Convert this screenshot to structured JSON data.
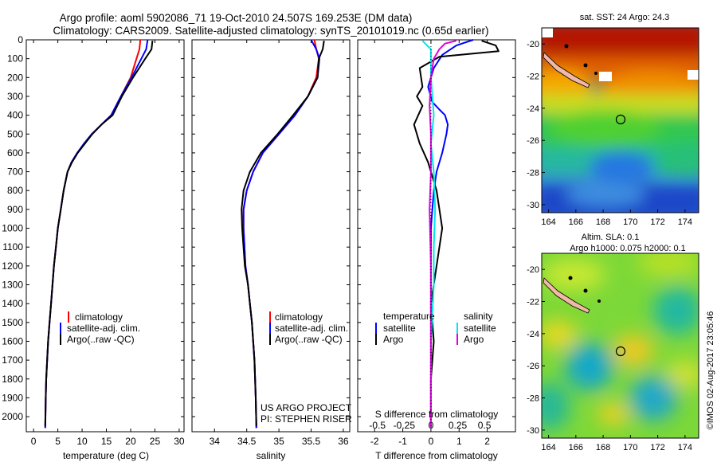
{
  "header": {
    "title_line1": "Argo profile: aoml 5902086_71 19-Oct-2010 24.507S 169.253E (DM data)",
    "title_line2": "Climatology: CARS2009. Satellite-adjusted climatology: synTS_20101019.nc (0.65d earlier)"
  },
  "colors": {
    "climatology": "#ff0000",
    "satellite": "#0000ff",
    "argo": "#000000",
    "sal_satellite": "#00e5ee",
    "sal_argo": "#e000e0"
  },
  "credits": {
    "line1": "US ARGO PROJECT",
    "line2": "PI: STEPHEN RISER"
  },
  "timestamp": "©IMOS 02-Aug-2017 23:05:46",
  "chart_data": [
    {
      "type": "line",
      "id": "temperature",
      "xlabel": "temperature (deg C)",
      "ylabel": "",
      "xlim": [
        -1.5,
        31
      ],
      "ylim": [
        2080,
        0
      ],
      "xticks": [
        0,
        5,
        10,
        15,
        20,
        25,
        30
      ],
      "yticks": [
        0,
        100,
        200,
        300,
        400,
        500,
        600,
        700,
        800,
        900,
        1000,
        1100,
        1200,
        1300,
        1400,
        1500,
        1600,
        1700,
        1800,
        1900,
        2000
      ],
      "legend": [
        "climatology",
        "satellite-adj. clim.",
        "Argo(..raw -QC)"
      ],
      "series": [
        {
          "name": "climatology",
          "color": "#ff0000",
          "x": [
            22.0,
            21.8,
            21.2,
            20.0,
            18.0,
            16.0,
            14.0,
            12.0,
            10.5,
            9.0,
            7.8,
            7.0,
            6.2,
            5.6,
            5.0,
            4.6,
            4.2,
            3.9,
            3.6,
            3.3,
            3.0,
            2.8,
            2.6,
            2.5,
            2.4
          ],
          "y": [
            0,
            50,
            100,
            200,
            300,
            400,
            450,
            500,
            550,
            600,
            650,
            700,
            800,
            900,
            1000,
            1100,
            1200,
            1300,
            1400,
            1500,
            1600,
            1700,
            1800,
            1900,
            2060
          ]
        },
        {
          "name": "satellite-adj. clim.",
          "color": "#0000ff",
          "x": [
            23.5,
            23.2,
            22.2,
            20.2,
            18.0,
            16.0,
            14.0,
            12.0,
            10.4,
            9.0,
            7.8,
            7.0,
            6.2,
            5.6,
            5.0,
            4.6,
            4.2,
            3.9,
            3.6,
            3.3,
            3.0,
            2.8,
            2.6,
            2.5,
            2.4
          ],
          "y": [
            0,
            50,
            100,
            200,
            300,
            400,
            450,
            500,
            550,
            600,
            650,
            700,
            800,
            900,
            1000,
            1100,
            1200,
            1300,
            1400,
            1500,
            1600,
            1700,
            1800,
            1900,
            2060
          ]
        },
        {
          "name": "Argo(..raw -QC)",
          "color": "#000000",
          "x": [
            24.5,
            24.3,
            23.0,
            20.5,
            18.2,
            16.3,
            14.0,
            12.1,
            10.6,
            9.1,
            7.9,
            7.0,
            6.2,
            5.6,
            5.0,
            4.6,
            4.2,
            3.9,
            3.6,
            3.3,
            3.0,
            2.8,
            2.6,
            2.5,
            2.4
          ],
          "y": [
            5,
            50,
            100,
            200,
            300,
            400,
            450,
            500,
            550,
            600,
            650,
            700,
            800,
            900,
            1000,
            1100,
            1200,
            1300,
            1400,
            1500,
            1600,
            1700,
            1800,
            1900,
            2050
          ]
        }
      ]
    },
    {
      "type": "line",
      "id": "salinity",
      "xlabel": "salinity",
      "ylabel": "",
      "xlim": [
        33.65,
        36.1
      ],
      "ylim": [
        2080,
        0
      ],
      "xticks": [
        34,
        34.5,
        35,
        35.5,
        36
      ],
      "legend": [
        "climatology",
        "satellite-adj. clim.",
        "Argo(..raw -QC)"
      ],
      "series": [
        {
          "name": "climatology",
          "color": "#ff0000",
          "x": [
            35.55,
            35.58,
            35.62,
            35.58,
            35.45,
            35.25,
            35.0,
            34.75,
            34.6,
            34.5,
            34.45,
            34.45,
            34.48,
            34.52,
            34.55,
            34.58,
            34.6,
            34.62,
            34.63,
            34.64,
            34.65
          ],
          "y": [
            0,
            50,
            100,
            200,
            300,
            400,
            500,
            600,
            700,
            800,
            900,
            1000,
            1200,
            1300,
            1400,
            1500,
            1600,
            1700,
            1800,
            1900,
            2060
          ]
        },
        {
          "name": "satellite-adj. clim.",
          "color": "#0000ff",
          "x": [
            35.5,
            35.58,
            35.63,
            35.6,
            35.45,
            35.25,
            35.0,
            34.75,
            34.6,
            34.5,
            34.45,
            34.45,
            34.48,
            34.52,
            34.55,
            34.58,
            34.6,
            34.62,
            34.63,
            34.64,
            34.65
          ],
          "y": [
            0,
            50,
            100,
            200,
            300,
            400,
            500,
            600,
            700,
            800,
            900,
            1000,
            1200,
            1300,
            1400,
            1500,
            1600,
            1700,
            1800,
            1900,
            2060
          ]
        },
        {
          "name": "Argo(..raw -QC)",
          "color": "#000000",
          "x": [
            35.7,
            35.68,
            35.62,
            35.6,
            35.45,
            35.22,
            34.98,
            34.72,
            34.55,
            34.45,
            34.42,
            34.43,
            34.47,
            34.52,
            34.55,
            34.58,
            34.6,
            34.62,
            34.63,
            34.64,
            34.65
          ],
          "y": [
            5,
            50,
            100,
            200,
            300,
            400,
            500,
            600,
            700,
            800,
            900,
            1000,
            1200,
            1300,
            1400,
            1500,
            1600,
            1700,
            1800,
            1900,
            2050
          ]
        }
      ]
    },
    {
      "type": "line",
      "id": "difference",
      "xlabel": "T difference from climatology",
      "ylabel": "",
      "xlabel_top": "S difference from climatology",
      "xlim": [
        -2.6,
        3.0
      ],
      "ylim": [
        2080,
        0
      ],
      "xticks": [
        -2,
        -1,
        0,
        1,
        2
      ],
      "s_ticks": [
        "-0.5",
        "-0.25",
        "0",
        "0.25",
        "0.5"
      ],
      "s_tick_positions": [
        -1.9,
        -0.95,
        0,
        0.95,
        1.9
      ],
      "legend_temperature": {
        "heading": "temperature",
        "items": [
          "satellite",
          "Argo"
        ]
      },
      "legend_salinity": {
        "heading": "salinity",
        "items": [
          "satellite",
          "Argo"
        ]
      },
      "series": [
        {
          "name": "T satellite",
          "color": "#0000ff",
          "x": [
            1.5,
            0.9,
            0.4,
            0.1,
            -0.1,
            0.05,
            0.3,
            0.5,
            0.6,
            0.55,
            0.4,
            0.2,
            0.1,
            0.0,
            0.0,
            0.0,
            0.0,
            0.0
          ],
          "y": [
            0,
            30,
            80,
            150,
            250,
            330,
            370,
            400,
            450,
            500,
            600,
            700,
            800,
            1000,
            1300,
            1600,
            1900,
            2060
          ]
        },
        {
          "name": "T Argo",
          "color": "#000000",
          "x": [
            1.8,
            2.3,
            2.4,
            0.3,
            -0.4,
            -0.3,
            -0.5,
            -0.3,
            -0.6,
            -0.4,
            -0.1,
            0.2,
            0.4,
            0.2,
            0.0,
            0.1,
            0.0,
            0.0
          ],
          "y": [
            5,
            30,
            60,
            90,
            150,
            250,
            300,
            350,
            450,
            550,
            650,
            800,
            1000,
            1200,
            1400,
            1600,
            1800,
            2050
          ]
        },
        {
          "name": "S satellite",
          "color": "#00e5ee",
          "x": [
            -0.3,
            0.0,
            0.0,
            0.0,
            0.1,
            0.0,
            0.1,
            0.15,
            0.1,
            0.1,
            0.0,
            0.0,
            0.0
          ],
          "y": [
            5,
            50,
            100,
            200,
            400,
            550,
            700,
            900,
            1100,
            1300,
            1600,
            1800,
            2060
          ]
        },
        {
          "name": "S Argo",
          "color": "#e000e0",
          "x": [
            0.9,
            0.5,
            0.3,
            0.1,
            0.0,
            -0.05,
            0.0,
            0.0,
            -0.05,
            0.0,
            0.0,
            0.0,
            0.0
          ],
          "y": [
            5,
            20,
            50,
            100,
            200,
            350,
            500,
            700,
            900,
            1200,
            1500,
            1800,
            2060
          ]
        }
      ]
    },
    {
      "type": "heatmap",
      "id": "sst_map",
      "title": "sat. SST: 24  Argo: 24.3",
      "xticks": [
        "164",
        "166",
        "168",
        "170",
        "172",
        "174"
      ],
      "yticks": [
        "-20",
        "-22",
        "-24",
        "-26",
        "-28",
        "-30"
      ],
      "xlim": [
        163.5,
        175
      ],
      "ylim": [
        -30.5,
        -19
      ]
    },
    {
      "type": "heatmap",
      "id": "sla_map",
      "title_line1": "Altim. SLA: 0.1",
      "title_line2": "Argo h1000: 0.075 h2000: 0.1",
      "xticks": [
        "164",
        "166",
        "168",
        "170",
        "172",
        "174"
      ],
      "yticks": [
        "-20",
        "-22",
        "-24",
        "-26",
        "-28",
        "-30"
      ],
      "xlim": [
        163.5,
        175
      ],
      "ylim": [
        -30.5,
        -19
      ]
    }
  ]
}
